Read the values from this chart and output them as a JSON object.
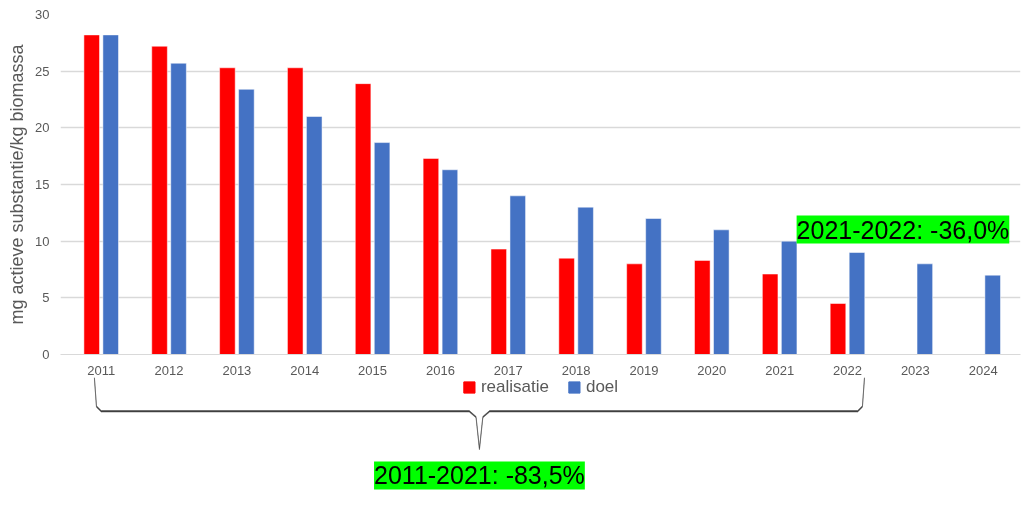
{
  "chart_data": {
    "type": "bar",
    "ylabel": "mg actieve substantie/kg biomassa",
    "categories": [
      "2011",
      "2012",
      "2013",
      "2014",
      "2015",
      "2016",
      "2017",
      "2018",
      "2019",
      "2020",
      "2021",
      "2022",
      "2023",
      "2024"
    ],
    "series": [
      {
        "name": "realisatie",
        "color": "#ff0000",
        "values": [
          28.2,
          27.2,
          25.3,
          25.3,
          23.9,
          17.3,
          9.3,
          8.5,
          8.0,
          8.3,
          7.1,
          4.5,
          null,
          null
        ]
      },
      {
        "name": "doel",
        "color": "#4472c4",
        "values": [
          28.2,
          25.7,
          23.4,
          21.0,
          18.7,
          16.3,
          14.0,
          13.0,
          12.0,
          11.0,
          10.0,
          9.0,
          8.0,
          7.0
        ]
      }
    ],
    "ylim": [
      0,
      30
    ],
    "yticks": [
      0,
      5,
      10,
      15,
      20,
      25,
      30
    ],
    "grid": "y",
    "legend": "bottom",
    "annotations": [
      "2021-2022: -36,0%",
      "2011-2021: -83,5%"
    ]
  }
}
